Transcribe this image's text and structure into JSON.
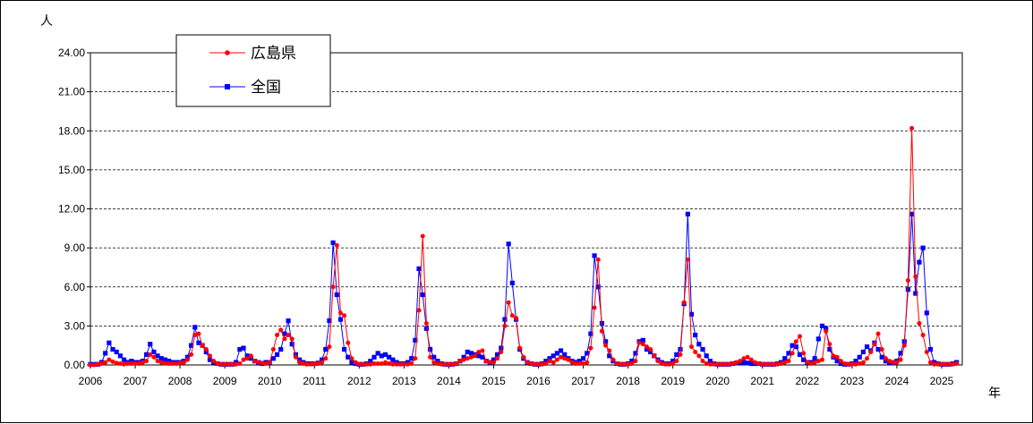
{
  "chart_data": {
    "type": "line",
    "ylabel": "人",
    "xlabel": "年",
    "ylim": [
      0,
      24
    ],
    "y_ticks": [
      "0.00",
      "3.00",
      "6.00",
      "9.00",
      "12.00",
      "15.00",
      "18.00",
      "21.00",
      "24.00"
    ],
    "x_ticks": [
      "2006",
      "2007",
      "2008",
      "2009",
      "2010",
      "2011",
      "2012",
      "2013",
      "2014",
      "2015",
      "2016",
      "2017",
      "2018",
      "2019",
      "2020",
      "2021",
      "2022",
      "2023",
      "2024",
      "2025"
    ],
    "x_start": "2006-01",
    "grid": "horizontal dashed",
    "legend_position": "top-left",
    "series": [
      {
        "name": "広島県",
        "color": "#ff0000",
        "marker": "circle",
        "values": [
          0.0,
          0.0,
          0.05,
          0.1,
          0.2,
          0.4,
          0.25,
          0.15,
          0.1,
          0.05,
          0.1,
          0.1,
          0.1,
          0.1,
          0.2,
          0.3,
          0.8,
          0.6,
          0.3,
          0.2,
          0.15,
          0.1,
          0.1,
          0.1,
          0.15,
          0.2,
          0.4,
          0.8,
          2.3,
          2.4,
          1.5,
          1.2,
          0.7,
          0.3,
          0.1,
          0.05,
          0.05,
          0.05,
          0.05,
          0.05,
          0.1,
          0.4,
          0.5,
          0.7,
          0.3,
          0.2,
          0.15,
          0.1,
          0.2,
          1.2,
          2.3,
          2.7,
          2.0,
          2.3,
          2.0,
          0.6,
          0.2,
          0.1,
          0.05,
          0.05,
          0.1,
          0.1,
          0.2,
          0.5,
          1.4,
          6.0,
          9.2,
          4.0,
          3.8,
          1.7,
          0.5,
          0.2,
          0.05,
          0.05,
          0.05,
          0.05,
          0.1,
          0.1,
          0.1,
          0.2,
          0.1,
          0.05,
          0.05,
          0.05,
          0.05,
          0.05,
          0.1,
          0.5,
          4.2,
          9.9,
          3.2,
          0.6,
          0.2,
          0.1,
          0.05,
          0.05,
          0.05,
          0.05,
          0.1,
          0.3,
          0.4,
          0.5,
          0.6,
          0.7,
          1.0,
          1.1,
          0.3,
          0.2,
          0.2,
          0.5,
          1.0,
          3.0,
          4.8,
          3.8,
          3.6,
          1.3,
          0.6,
          0.2,
          0.1,
          0.05,
          0.05,
          0.05,
          0.1,
          0.3,
          0.2,
          0.4,
          0.6,
          0.5,
          0.4,
          0.2,
          0.1,
          0.1,
          0.1,
          0.2,
          1.3,
          4.4,
          8.1,
          2.6,
          1.5,
          1.1,
          0.4,
          0.1,
          0.05,
          0.05,
          0.05,
          0.1,
          0.3,
          1.7,
          1.6,
          1.4,
          1.2,
          0.7,
          0.3,
          0.1,
          0.05,
          0.05,
          0.1,
          0.3,
          0.8,
          4.8,
          8.1,
          1.4,
          1.0,
          0.7,
          0.3,
          0.1,
          0.05,
          0.05,
          0.05,
          0.05,
          0.05,
          0.05,
          0.1,
          0.2,
          0.3,
          0.5,
          0.6,
          0.4,
          0.2,
          0.1,
          0.05,
          0.05,
          0.05,
          0.05,
          0.05,
          0.1,
          0.2,
          0.3,
          0.9,
          1.8,
          2.2,
          0.9,
          0.2,
          0.1,
          0.2,
          0.3,
          0.4,
          2.6,
          1.6,
          0.7,
          0.6,
          0.3,
          0.1,
          0.05,
          0.05,
          0.05,
          0.1,
          0.2,
          0.5,
          1.0,
          1.6,
          2.4,
          1.2,
          0.5,
          0.3,
          0.2,
          0.2,
          0.4,
          1.5,
          6.5,
          18.2,
          6.8,
          3.2,
          2.3,
          1.0,
          0.2,
          0.05,
          0.05,
          0.05,
          0.05,
          0.05,
          0.05,
          0.1
        ]
      },
      {
        "name": "全国",
        "color": "#0000ff",
        "marker": "square",
        "values": [
          0.05,
          0.05,
          0.05,
          0.2,
          0.9,
          1.7,
          1.2,
          1.0,
          0.7,
          0.4,
          0.2,
          0.3,
          0.2,
          0.2,
          0.3,
          0.8,
          1.6,
          1.0,
          0.7,
          0.5,
          0.4,
          0.3,
          0.2,
          0.2,
          0.2,
          0.3,
          0.6,
          1.5,
          2.9,
          1.7,
          1.5,
          1.0,
          0.4,
          0.2,
          0.1,
          0.05,
          0.05,
          0.05,
          0.05,
          0.2,
          1.2,
          1.3,
          0.7,
          0.5,
          0.3,
          0.2,
          0.1,
          0.2,
          0.2,
          0.5,
          0.8,
          1.2,
          2.4,
          3.4,
          1.6,
          0.8,
          0.4,
          0.2,
          0.1,
          0.1,
          0.1,
          0.15,
          0.4,
          1.2,
          3.4,
          9.4,
          5.4,
          3.5,
          1.2,
          0.6,
          0.2,
          0.1,
          0.05,
          0.05,
          0.1,
          0.3,
          0.6,
          0.9,
          0.7,
          0.8,
          0.6,
          0.4,
          0.2,
          0.1,
          0.1,
          0.2,
          0.5,
          1.9,
          7.4,
          5.4,
          2.8,
          1.2,
          0.6,
          0.3,
          0.1,
          0.05,
          0.05,
          0.05,
          0.1,
          0.3,
          0.6,
          1.0,
          0.9,
          0.8,
          0.7,
          0.6,
          0.3,
          0.2,
          0.4,
          0.8,
          1.3,
          3.5,
          9.3,
          6.3,
          3.5,
          1.2,
          0.5,
          0.2,
          0.1,
          0.05,
          0.05,
          0.1,
          0.3,
          0.5,
          0.7,
          0.9,
          1.1,
          0.8,
          0.5,
          0.3,
          0.2,
          0.3,
          0.5,
          0.9,
          2.4,
          8.4,
          6.0,
          3.2,
          1.8,
          0.7,
          0.3,
          0.1,
          0.05,
          0.05,
          0.1,
          0.3,
          0.9,
          1.8,
          1.9,
          1.2,
          1.0,
          0.7,
          0.4,
          0.2,
          0.1,
          0.1,
          0.3,
          0.8,
          1.2,
          4.7,
          11.6,
          3.9,
          2.3,
          1.6,
          1.2,
          0.7,
          0.3,
          0.1,
          0.05,
          0.05,
          0.05,
          0.05,
          0.1,
          0.15,
          0.2,
          0.2,
          0.15,
          0.1,
          0.1,
          0.1,
          0.05,
          0.05,
          0.05,
          0.05,
          0.1,
          0.2,
          0.5,
          0.9,
          1.5,
          1.4,
          0.8,
          0.4,
          0.2,
          0.2,
          0.5,
          2.0,
          3.0,
          2.8,
          1.2,
          0.6,
          0.3,
          0.1,
          0.05,
          0.05,
          0.1,
          0.3,
          0.6,
          1.0,
          1.4,
          1.1,
          1.7,
          1.2,
          0.6,
          0.3,
          0.2,
          0.2,
          0.3,
          0.9,
          1.8,
          5.8,
          11.6,
          5.5,
          7.9,
          9.0,
          4.0,
          1.2,
          0.2,
          0.1,
          0.05,
          0.05,
          0.05,
          0.1,
          0.2
        ]
      }
    ]
  }
}
